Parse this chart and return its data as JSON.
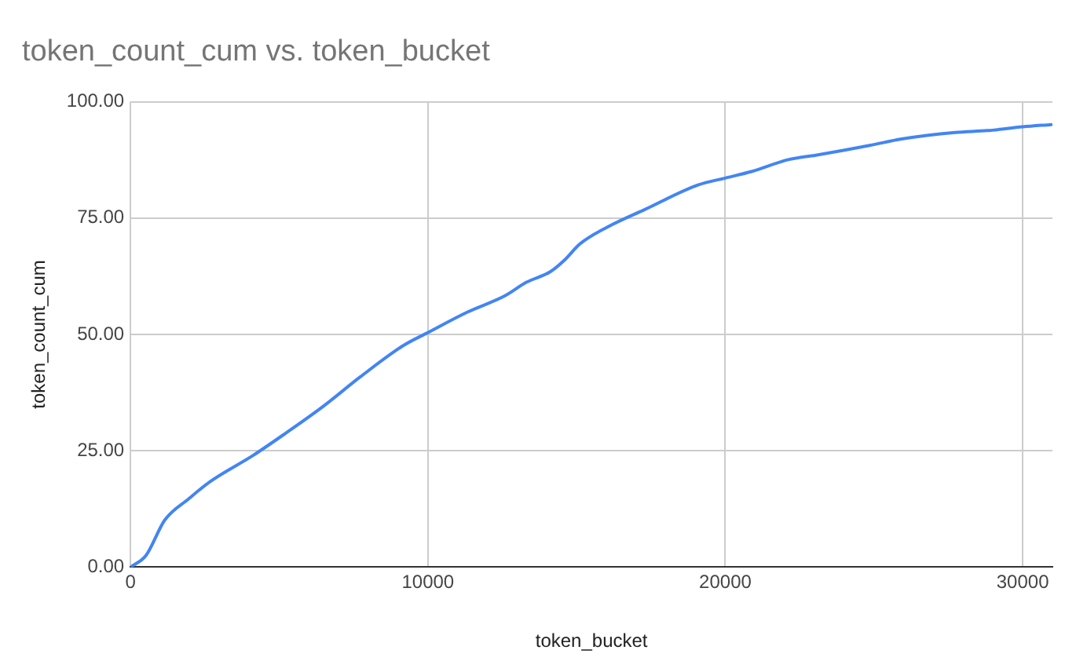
{
  "chart_data": {
    "type": "line",
    "title": "token_count_cum vs. token_bucket",
    "xlabel": "token_bucket",
    "ylabel": "token_count_cum",
    "x": [
      0,
      520,
      1150,
      1960,
      2680,
      4120,
      5200,
      6470,
      7730,
      9170,
      10000,
      11330,
      12590,
      13310,
      14120,
      14580,
      15120,
      16200,
      17280,
      19080,
      20000,
      20880,
      22140,
      23040,
      24850,
      25930,
      27730,
      28810,
      30000,
      30960
    ],
    "series": [
      {
        "color": "#4285f4",
        "values": [
          0,
          2.5,
          10.1,
          14.7,
          18.4,
          24.0,
          28.7,
          34.5,
          40.9,
          47.6,
          50.4,
          54.8,
          58.3,
          61.2,
          63.5,
          65.9,
          69.5,
          73.6,
          76.8,
          82.1,
          83.6,
          85.0,
          87.6,
          88.5,
          90.6,
          92.0,
          93.4,
          93.8,
          94.6,
          95.1
        ]
      }
    ],
    "xlim": [
      0,
      31000
    ],
    "xticks": [
      0,
      10000,
      20000,
      30000
    ],
    "ylim": [
      0,
      100
    ],
    "yticks": [
      {
        "value": 0,
        "label": "0.00"
      },
      {
        "value": 25,
        "label": "25.00"
      },
      {
        "value": 50,
        "label": "50.00"
      },
      {
        "value": 75,
        "label": "75.00"
      },
      {
        "value": 100,
        "label": "100.00"
      }
    ],
    "grid": true,
    "legend": false,
    "marker": "none",
    "line_style": "solid"
  }
}
